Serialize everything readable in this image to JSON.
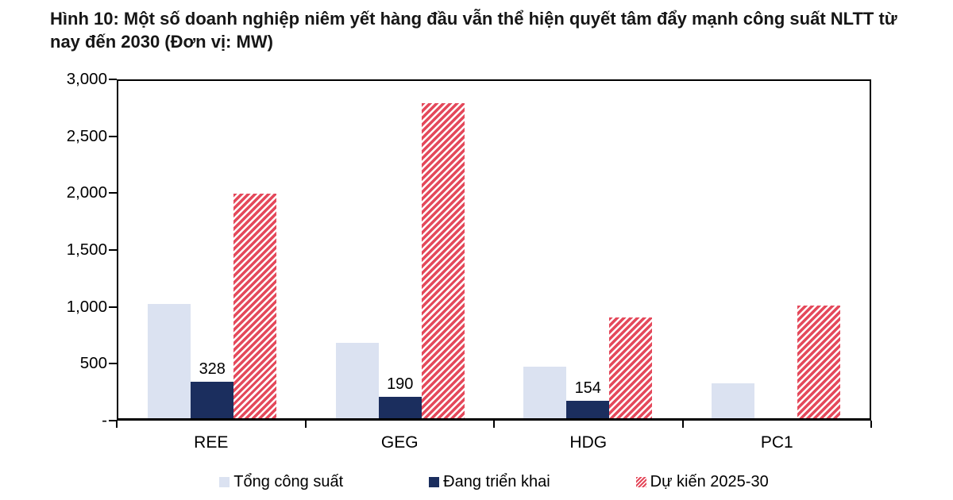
{
  "figure_title": "Hình 10: Một số doanh nghiệp niêm yết hàng đầu vẫn thể hiện quyết tâm đẩy mạnh công suất NLTT từ nay đến 2030 (Đơn vị: MW)",
  "colors": {
    "light_blue": "#dbe2f1",
    "navy": "#1b2e5e",
    "red": "#e4495b",
    "axis": "#000000",
    "text": "#161616"
  },
  "chart_data": {
    "type": "bar",
    "title": "Hình 10: Một số doanh nghiệp niêm yết hàng đầu vẫn thể hiện quyết tâm đẩy mạnh công suất NLTT từ nay đến 2030",
    "unit": "MW",
    "categories": [
      "REE",
      "GEG",
      "HDG",
      "PC1"
    ],
    "series": [
      {
        "name": "Tổng công suất",
        "style": "solid-light",
        "values": [
          1020,
          670,
          460,
          310
        ]
      },
      {
        "name": "Đang triển khai",
        "style": "solid-navy",
        "values": [
          328,
          190,
          154,
          0
        ],
        "labels": [
          "328",
          "190",
          "154",
          ""
        ]
      },
      {
        "name": "Dự kiến 2025-30",
        "style": "hatch-red",
        "values": [
          2000,
          2800,
          900,
          1000
        ]
      }
    ],
    "ylim": [
      0,
      3000
    ],
    "yticks": [
      {
        "label": "3,000",
        "value": 3000
      },
      {
        "label": "2,500",
        "value": 2500
      },
      {
        "label": "2,000",
        "value": 2000
      },
      {
        "label": "1,500",
        "value": 1500
      },
      {
        "label": "1,000",
        "value": 1000
      },
      {
        "label": "500",
        "value": 500
      },
      {
        "label": "-",
        "value": 0
      }
    ],
    "grid": false,
    "legend_position": "bottom"
  }
}
